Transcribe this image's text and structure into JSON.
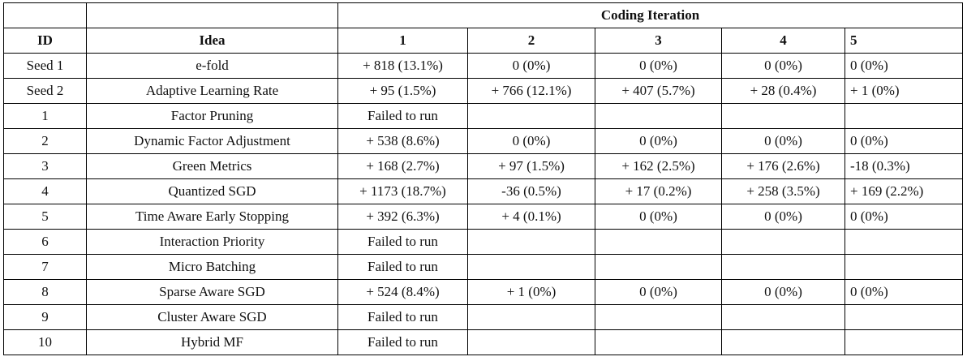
{
  "table": {
    "group_header": "Coding Iteration",
    "columns": [
      "ID",
      "Idea",
      "1",
      "2",
      "3",
      "4",
      "5"
    ],
    "rows": [
      [
        "Seed 1",
        "e-fold",
        "+ 818 (13.1%)",
        "0 (0%)",
        "0 (0%)",
        "0 (0%)",
        "0 (0%)"
      ],
      [
        "Seed 2",
        "Adaptive Learning Rate",
        "+ 95 (1.5%)",
        "+ 766 (12.1%)",
        "+ 407 (5.7%)",
        "+ 28 (0.4%)",
        "+ 1 (0%)"
      ],
      [
        "1",
        "Factor Pruning",
        "Failed to run"
      ],
      [
        "2",
        "Dynamic Factor Adjustment",
        "+ 538 (8.6%)",
        "0 (0%)",
        "0 (0%)",
        "0 (0%)",
        "0 (0%)"
      ],
      [
        "3",
        "Green Metrics",
        "+ 168 (2.7%)",
        "+ 97 (1.5%)",
        "+ 162 (2.5%)",
        "+ 176 (2.6%)",
        "-18 (0.3%)"
      ],
      [
        "4",
        "Quantized SGD",
        "+ 1173 (18.7%)",
        "-36 (0.5%)",
        "+ 17 (0.2%)",
        "+ 258 (3.5%)",
        "+ 169 (2.2%)"
      ],
      [
        "5",
        "Time Aware Early Stopping",
        "+ 392 (6.3%)",
        "+ 4 (0.1%)",
        "0 (0%)",
        "0 (0%)",
        "0 (0%)"
      ],
      [
        "6",
        "Interaction Priority",
        "Failed to run"
      ],
      [
        "7",
        "Micro Batching",
        "Failed to run"
      ],
      [
        "8",
        "Sparse Aware SGD",
        "+ 524 (8.4%)",
        "+ 1 (0%)",
        "0 (0%)",
        "0 (0%)",
        "0 (0%)"
      ],
      [
        "9",
        "Cluster Aware SGD",
        "Failed to run"
      ],
      [
        "10",
        "Hybrid MF",
        "Failed to run"
      ]
    ]
  }
}
